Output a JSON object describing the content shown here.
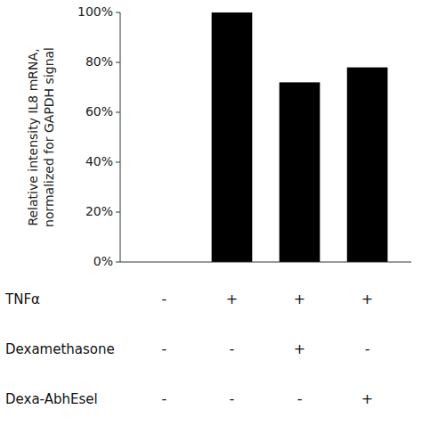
{
  "chart_data": {
    "type": "bar",
    "categories": [
      null,
      null,
      null,
      null
    ],
    "values": [
      0,
      100,
      72,
      78
    ],
    "color": "#000000",
    "y_label": [
      "Relative intensity IL8 mRNA,",
      "normalized for GAPDH signal"
    ],
    "ylim": [
      0,
      100
    ],
    "yticks": [
      {
        "value": 0,
        "label": "0%"
      },
      {
        "value": 20,
        "label": "20%"
      },
      {
        "value": 40,
        "label": "40%"
      },
      {
        "value": 60,
        "label": "60%"
      },
      {
        "value": 80,
        "label": "80%"
      },
      {
        "value": 100,
        "label": "100%"
      }
    ],
    "grid": false,
    "tick_labels": "y",
    "table": {
      "row_labels": [
        "TNFα",
        "Dexamethasone",
        "Dexa-AbhEsel"
      ],
      "cells": [
        [
          "-",
          "+",
          "+",
          "+"
        ],
        [
          "-",
          "-",
          "+",
          "-"
        ],
        [
          "-",
          "-",
          "-",
          "+"
        ]
      ]
    }
  }
}
